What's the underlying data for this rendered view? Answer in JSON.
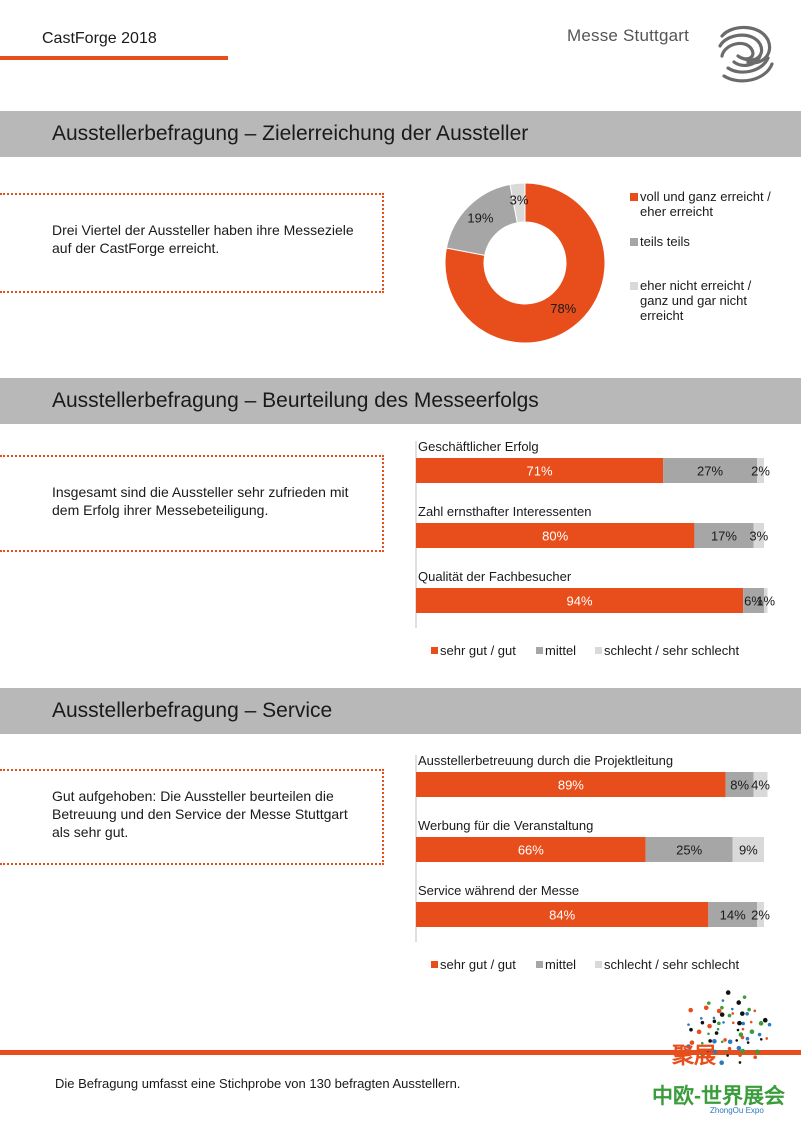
{
  "header": {
    "event_title": "CastForge 2018",
    "brand": "Messe Stuttgart",
    "accent_color": "#e84e1b"
  },
  "sections": [
    {
      "title": "Ausstellerbefragung – Zielerreichung der Aussteller",
      "text": "Drei Viertel der Aussteller haben ihre Messeziele auf der CastForge erreicht."
    },
    {
      "title": "Ausstellerbefragung – Beurteilung des Messeerfolgs",
      "text": "Insgesamt sind die Aussteller sehr zufrieden mit dem Erfolg ihrer Messebeteiligung."
    },
    {
      "title": "Ausstellerbefragung – Service",
      "text": "Gut aufgehoben: Die Aussteller beurteilen die Betreuung und den Service der Messe Stuttgart als sehr gut."
    }
  ],
  "chart_data": [
    {
      "type": "pie",
      "donut": true,
      "categories": [
        "voll und ganz erreicht / eher erreicht",
        "teils teils",
        "eher nicht erreicht / ganz und gar nicht erreicht"
      ],
      "values": [
        78,
        19,
        3
      ],
      "labels": [
        "78%",
        "19%",
        "3%"
      ],
      "colors": [
        "#e84e1b",
        "#a6a6a6",
        "#d9d9d9"
      ],
      "legend_position": "right"
    },
    {
      "type": "bar",
      "orientation": "horizontal",
      "stacked": true,
      "percent_scale": true,
      "categories": [
        "Geschäftlicher Erfolg",
        "Zahl ernsthafter Interessenten",
        "Qualität der Fachbesucher"
      ],
      "series": [
        {
          "name": "sehr gut / gut",
          "values": [
            71,
            80,
            94
          ],
          "color": "#e84e1b"
        },
        {
          "name": "mittel",
          "values": [
            27,
            17,
            6
          ],
          "color": "#a6a6a6"
        },
        {
          "name": "schlecht / sehr schlecht",
          "values": [
            2,
            3,
            1
          ],
          "color": "#d9d9d9"
        }
      ],
      "legend_position": "bottom"
    },
    {
      "type": "bar",
      "orientation": "horizontal",
      "stacked": true,
      "percent_scale": true,
      "categories": [
        "Ausstellerbetreuung durch die Projektleitung",
        "Werbung für die Veranstaltung",
        "Service während der Messe"
      ],
      "series": [
        {
          "name": "sehr gut / gut",
          "values": [
            89,
            66,
            84
          ],
          "color": "#e84e1b"
        },
        {
          "name": "mittel",
          "values": [
            8,
            25,
            14
          ],
          "color": "#a6a6a6"
        },
        {
          "name": "schlecht / sehr schlecht",
          "values": [
            4,
            9,
            2
          ],
          "color": "#d9d9d9"
        }
      ],
      "legend_position": "bottom"
    }
  ],
  "footer": {
    "note": "Die Befragung umfasst eine Stichprobe von 130 befragten Ausstellern.",
    "watermark_text": "聚展",
    "watermark_text_2": "中欧-世界展会",
    "watermark_text_3": "ZhongOu Expo"
  }
}
